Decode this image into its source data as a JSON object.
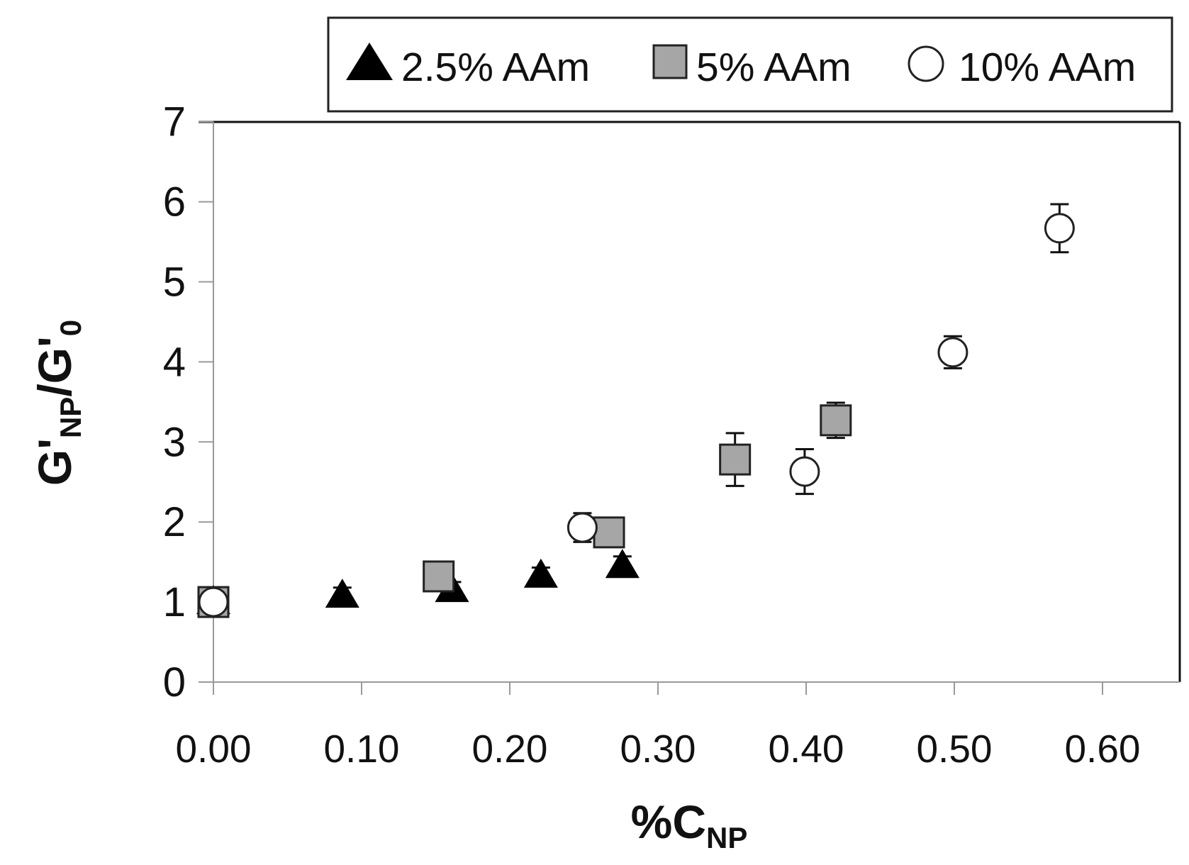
{
  "chart_data": {
    "type": "scatter",
    "title": "",
    "xlabel": {
      "main": "%C",
      "sub": "NP"
    },
    "ylabel": {
      "g1": "G'",
      "sub1": "NP",
      "mid": "/G'",
      "sub2": "0"
    },
    "xlim": [
      0.0,
      0.65
    ],
    "ylim": [
      0,
      7
    ],
    "x_ticks": [
      0.0,
      0.1,
      0.2,
      0.3,
      0.4,
      0.5,
      0.6
    ],
    "x_tick_labels": [
      "0.00",
      "0.10",
      "0.20",
      "0.30",
      "0.40",
      "0.50",
      "0.60"
    ],
    "y_ticks": [
      0,
      1,
      2,
      3,
      4,
      5,
      6,
      7
    ],
    "y_tick_labels": [
      "0",
      "1",
      "2",
      "3",
      "4",
      "5",
      "6",
      "7"
    ],
    "legend_position": "top",
    "series": [
      {
        "name": "2.5% AAm",
        "marker": "triangle",
        "color": "#000000",
        "points": [
          {
            "x": 0.0,
            "y": 1.0,
            "err": 0.05
          },
          {
            "x": 0.087,
            "y": 1.08,
            "err": 0.1
          },
          {
            "x": 0.161,
            "y": 1.15,
            "err": 0.1
          },
          {
            "x": 0.221,
            "y": 1.33,
            "err": 0.1
          },
          {
            "x": 0.276,
            "y": 1.45,
            "err": 0.12
          }
        ]
      },
      {
        "name": "5% AAm",
        "marker": "square",
        "color": "#a6a6a6",
        "points": [
          {
            "x": 0.0,
            "y": 1.0,
            "err": 0.05
          },
          {
            "x": 0.152,
            "y": 1.32,
            "err": 0.1
          },
          {
            "x": 0.267,
            "y": 1.87,
            "err": 0.1
          },
          {
            "x": 0.352,
            "y": 2.78,
            "err": 0.33
          },
          {
            "x": 0.42,
            "y": 3.27,
            "err": 0.22
          }
        ]
      },
      {
        "name": "10% AAm",
        "marker": "circle",
        "color": "#ffffff",
        "points": [
          {
            "x": 0.0,
            "y": 1.0,
            "err": 0.05
          },
          {
            "x": 0.249,
            "y": 1.93,
            "err": 0.18
          },
          {
            "x": 0.399,
            "y": 2.63,
            "err": 0.28
          },
          {
            "x": 0.499,
            "y": 4.12,
            "err": 0.2
          },
          {
            "x": 0.571,
            "y": 5.67,
            "err": 0.3
          }
        ]
      }
    ]
  }
}
